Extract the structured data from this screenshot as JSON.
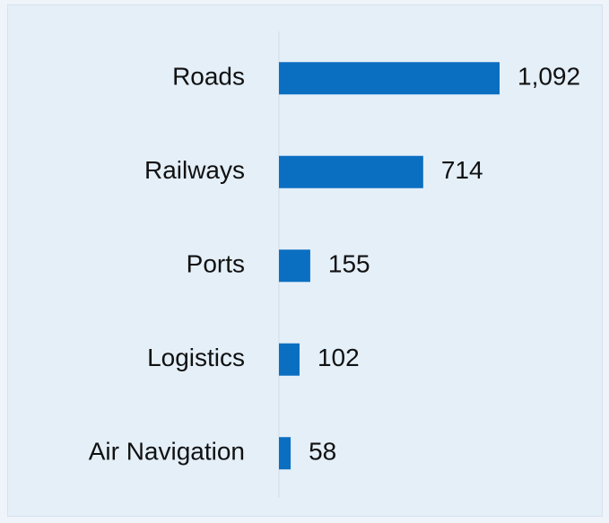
{
  "chart_data": {
    "type": "bar",
    "orientation": "horizontal",
    "categories": [
      "Roads",
      "Railways",
      "Ports",
      "Logistics",
      "Air Navigation"
    ],
    "values": [
      1092,
      714,
      155,
      102,
      58
    ],
    "value_labels": [
      "1,092",
      "714",
      "155",
      "102",
      "58"
    ],
    "color": "#0b6fc1"
  }
}
